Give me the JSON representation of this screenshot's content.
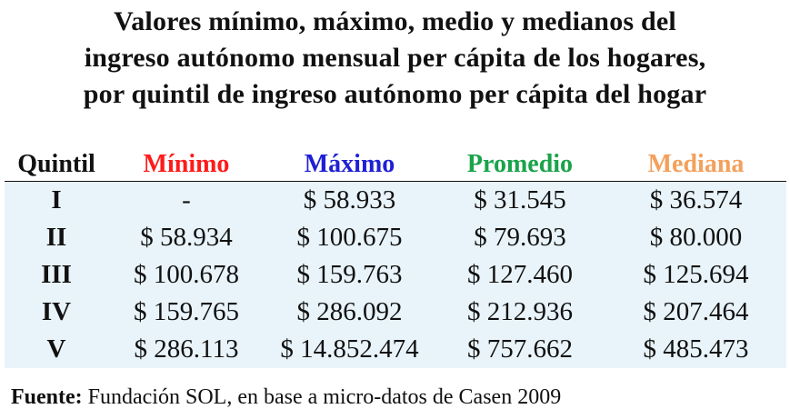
{
  "title": "Valores mínimo, máximo, medio y medianos del\ningreso autónomo mensual per cápita de los hogares,\npor quintil de ingreso autónomo per cápita del hogar",
  "colors": {
    "minimo": "#ff1a1a",
    "maximo": "#1f1fd6",
    "promedio": "#1aa34a",
    "mediana": "#f4a05c",
    "table_bg": "#e9f4fa"
  },
  "chart_data": {
    "type": "table",
    "columns": [
      "Quintil",
      "Mínimo",
      "Máximo",
      "Promedio",
      "Mediana"
    ],
    "rows": [
      [
        "I",
        "-",
        "$ 58.933",
        "$ 31.545",
        "$ 36.574"
      ],
      [
        "II",
        "$ 58.934",
        "$ 100.675",
        "$ 79.693",
        "$ 80.000"
      ],
      [
        "III",
        "$ 100.678",
        "$ 159.763",
        "$ 127.460",
        "$ 125.694"
      ],
      [
        "IV",
        "$ 159.765",
        "$ 286.092",
        "$ 212.936",
        "$ 207.464"
      ],
      [
        "V",
        "$ 286.113",
        "$ 14.852.474",
        "$ 757.662",
        "$ 485.473"
      ]
    ]
  },
  "source": {
    "label": "Fuente:",
    "text": " Fundación SOL, en base a micro-datos de Casen 2009"
  }
}
